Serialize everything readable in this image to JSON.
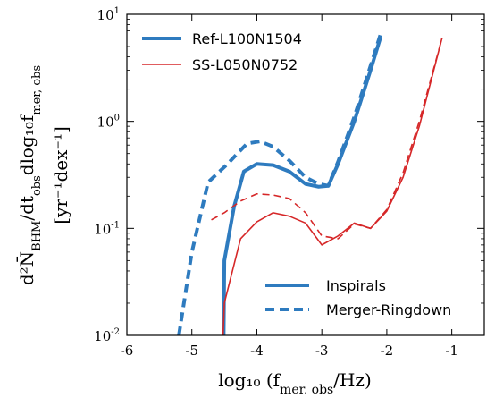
{
  "chart_data": {
    "type": "line",
    "title": "",
    "xlabel": "log₁₀ (f",
    "xlabel_sub": "mer, obs",
    "xlabel_tail": "/Hz)",
    "ylabel_line1": "d²N̄",
    "ylabel_line1_sub": "BHM",
    "ylabel_line1_mid": "/dt",
    "ylabel_line1_sub2": "obs",
    "ylabel_line1_tail": "dlog₁₀f",
    "ylabel_line1_sub3": "mer, obs",
    "ylabel_line2": "[yr⁻¹dex⁻¹]",
    "xlim": [
      -6,
      -0.5
    ],
    "ylim": [
      0.01,
      10
    ],
    "yscale": "log",
    "xticks": [
      -6,
      -5,
      -4,
      -3,
      -2,
      -1
    ],
    "xtick_labels": [
      "-6",
      "-5",
      "-4",
      "-3",
      "-2",
      "-1"
    ],
    "yticks": [
      {
        "value": 10,
        "base": "10",
        "exp": "1"
      },
      {
        "value": 1,
        "base": "10",
        "exp": "0"
      },
      {
        "value": 0.1,
        "base": "10",
        "exp": "-1"
      },
      {
        "value": 0.01,
        "base": "10",
        "exp": "-2"
      }
    ],
    "legend_models": [
      {
        "label": "Ref-L100N1504",
        "color": "#2e7bbf",
        "width": 4
      },
      {
        "label": "SS-L050N0752",
        "color": "#d62728",
        "width": 1.6
      }
    ],
    "legend_styles": [
      {
        "label": "Inspirals",
        "dash": "solid"
      },
      {
        "label": "Merger-Ringdown",
        "dash": "dashed"
      }
    ],
    "series": [
      {
        "model": "Ref-L100N1504",
        "kind": "Inspirals",
        "color": "#2e7bbf",
        "width": 4,
        "dash": "solid",
        "x": [
          -4.51,
          -4.5,
          -4.35,
          -4.2,
          -4.0,
          -3.75,
          -3.5,
          -3.25,
          -3.05,
          -2.9,
          -2.75,
          -2.5,
          -2.25,
          -2.1
        ],
        "y": [
          0.01,
          0.05,
          0.16,
          0.34,
          0.4,
          0.39,
          0.34,
          0.26,
          0.245,
          0.25,
          0.4,
          1.0,
          3.0,
          6.0
        ]
      },
      {
        "model": "Ref-L100N1504",
        "kind": "Merger-Ringdown",
        "color": "#2e7bbf",
        "width": 4,
        "dash": "dashed",
        "x": [
          -5.2,
          -5.0,
          -4.75,
          -4.45,
          -4.3,
          -4.15,
          -3.95,
          -3.75,
          -3.5,
          -3.25,
          -3.05,
          -2.9,
          -2.75,
          -2.5,
          -2.25,
          -2.1
        ],
        "y": [
          0.01,
          0.06,
          0.27,
          0.4,
          0.5,
          0.62,
          0.65,
          0.58,
          0.43,
          0.3,
          0.26,
          0.25,
          0.42,
          1.1,
          3.3,
          6.4
        ]
      },
      {
        "model": "SS-L050N0752",
        "kind": "Inspirals",
        "color": "#d62728",
        "width": 1.6,
        "dash": "solid",
        "x": [
          -4.52,
          -4.5,
          -4.4,
          -4.25,
          -4.0,
          -3.75,
          -3.5,
          -3.25,
          -3.0,
          -2.75,
          -2.5,
          -2.25,
          -2.0,
          -1.75,
          -1.5,
          -1.15
        ],
        "y": [
          0.01,
          0.02,
          0.035,
          0.08,
          0.115,
          0.14,
          0.13,
          0.112,
          0.07,
          0.085,
          0.112,
          0.1,
          0.145,
          0.3,
          0.9,
          6.0
        ]
      },
      {
        "model": "SS-L050N0752",
        "kind": "Merger-Ringdown",
        "color": "#d62728",
        "width": 1.6,
        "dash": "dashed",
        "x": [
          -4.7,
          -4.5,
          -4.25,
          -4.0,
          -3.75,
          -3.5,
          -3.25,
          -3.0,
          -2.75,
          -2.5,
          -2.25,
          -2.0,
          -1.75,
          -1.5,
          -1.15
        ],
        "y": [
          0.12,
          0.14,
          0.18,
          0.21,
          0.205,
          0.19,
          0.14,
          0.085,
          0.08,
          0.11,
          0.1,
          0.15,
          0.33,
          1.0,
          6.0
        ]
      }
    ],
    "grid": false,
    "legend_placement": [
      "top-left",
      "bottom-right"
    ]
  }
}
